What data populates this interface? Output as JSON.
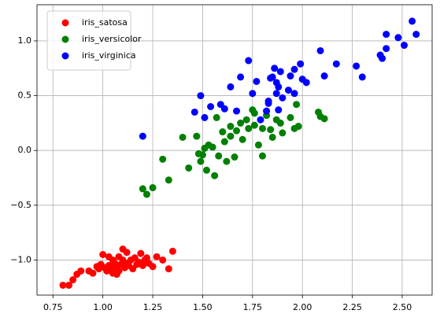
{
  "chart_data": {
    "type": "scatter",
    "xlim": [
      0.67,
      2.65
    ],
    "ylim": [
      -1.32,
      1.33
    ],
    "xticks": [
      {
        "value": 0.75,
        "label": "0.75"
      },
      {
        "value": 1.0,
        "label": "1.00"
      },
      {
        "value": 1.25,
        "label": "1.25"
      },
      {
        "value": 1.5,
        "label": "1.50"
      },
      {
        "value": 1.75,
        "label": "1.75"
      },
      {
        "value": 2.0,
        "label": "2.00"
      },
      {
        "value": 2.25,
        "label": "2.25"
      },
      {
        "value": 2.5,
        "label": "2.50"
      }
    ],
    "yticks": [
      {
        "value": -1.0,
        "label": "−1.0"
      },
      {
        "value": -0.5,
        "label": "−0.5"
      },
      {
        "value": 0.0,
        "label": "0.0"
      },
      {
        "value": 0.5,
        "label": "0.5"
      },
      {
        "value": 1.0,
        "label": "1.0"
      }
    ],
    "grid": true,
    "legend": "upper-left",
    "series": [
      {
        "name": "iris_satosa",
        "color": "#ff0000",
        "x": [
          0.8,
          0.83,
          0.85,
          0.87,
          0.89,
          0.93,
          0.95,
          0.97,
          0.99,
          1.0,
          1.01,
          1.02,
          1.03,
          1.04,
          1.05,
          1.05,
          1.06,
          1.07,
          1.08,
          1.08,
          1.09,
          1.1,
          1.1,
          1.11,
          1.12,
          1.12,
          1.13,
          1.14,
          1.15,
          1.16,
          1.17,
          1.18,
          1.19,
          1.2,
          1.21,
          1.22,
          1.23,
          1.25,
          1.27,
          1.3,
          1.33,
          1.35,
          1.07,
          1.03,
          0.98
        ],
        "values": [
          -1.23,
          -1.23,
          -1.18,
          -1.13,
          -1.1,
          -1.1,
          -1.12,
          -1.06,
          -1.04,
          -0.95,
          -1.07,
          -1.1,
          -1.05,
          -1.08,
          -1.0,
          -1.12,
          -1.03,
          -1.07,
          -0.97,
          -1.1,
          -1.04,
          -0.9,
          -1.0,
          -1.07,
          -0.93,
          -1.03,
          -1.05,
          -1.0,
          -1.08,
          -0.98,
          -1.04,
          -1.02,
          -0.94,
          -1.05,
          -1.0,
          -0.98,
          -1.03,
          -1.06,
          -0.97,
          -1.0,
          -1.08,
          -0.92,
          -1.13,
          -0.97,
          -1.08
        ]
      },
      {
        "name": "iris_versicolor",
        "color": "#008000",
        "x": [
          1.2,
          1.22,
          1.25,
          1.3,
          1.33,
          1.4,
          1.43,
          1.47,
          1.48,
          1.49,
          1.5,
          1.51,
          1.52,
          1.53,
          1.55,
          1.56,
          1.57,
          1.58,
          1.6,
          1.61,
          1.62,
          1.64,
          1.66,
          1.67,
          1.7,
          1.72,
          1.73,
          1.75,
          1.76,
          1.78,
          1.8,
          1.8,
          1.82,
          1.84,
          1.85,
          1.87,
          1.89,
          1.9,
          1.94,
          1.96,
          1.97,
          1.98,
          2.08,
          2.09,
          2.11,
          1.76,
          1.69,
          1.64
        ],
        "values": [
          -0.35,
          -0.4,
          -0.34,
          -0.08,
          -0.27,
          0.12,
          -0.16,
          0.13,
          -0.03,
          -0.1,
          -0.04,
          0.02,
          -0.18,
          0.05,
          0.03,
          -0.23,
          0.3,
          -0.05,
          0.17,
          0.08,
          -0.1,
          0.13,
          -0.06,
          0.18,
          0.1,
          0.28,
          0.2,
          0.37,
          0.23,
          0.05,
          0.2,
          -0.05,
          0.32,
          0.19,
          0.12,
          0.28,
          0.25,
          0.16,
          0.3,
          0.2,
          0.42,
          0.22,
          0.35,
          0.31,
          0.29,
          0.34,
          0.25,
          0.22
        ]
      },
      {
        "name": "iris_virginica",
        "color": "#0000ff",
        "x": [
          1.2,
          1.46,
          1.49,
          1.51,
          1.54,
          1.59,
          1.61,
          1.64,
          1.67,
          1.69,
          1.73,
          1.75,
          1.77,
          1.79,
          1.82,
          1.83,
          1.85,
          1.86,
          1.87,
          1.88,
          1.89,
          1.9,
          1.93,
          1.94,
          1.96,
          1.99,
          2.0,
          2.02,
          2.09,
          2.11,
          2.17,
          2.27,
          2.3,
          2.39,
          2.4,
          2.42,
          2.42,
          2.48,
          2.51,
          2.55,
          2.57,
          1.87,
          1.83,
          1.88,
          1.96,
          1.84
        ],
        "values": [
          0.13,
          0.35,
          0.5,
          0.3,
          0.4,
          0.42,
          0.38,
          0.58,
          0.36,
          0.67,
          0.82,
          0.52,
          0.63,
          0.28,
          0.36,
          0.45,
          0.67,
          0.75,
          0.52,
          0.58,
          0.72,
          0.48,
          0.55,
          0.68,
          0.52,
          0.79,
          0.65,
          0.62,
          0.91,
          0.68,
          0.79,
          0.77,
          0.67,
          0.87,
          0.84,
          0.93,
          1.06,
          1.03,
          0.96,
          1.18,
          1.06,
          0.62,
          0.43,
          0.37,
          0.74,
          0.66
        ]
      }
    ]
  }
}
